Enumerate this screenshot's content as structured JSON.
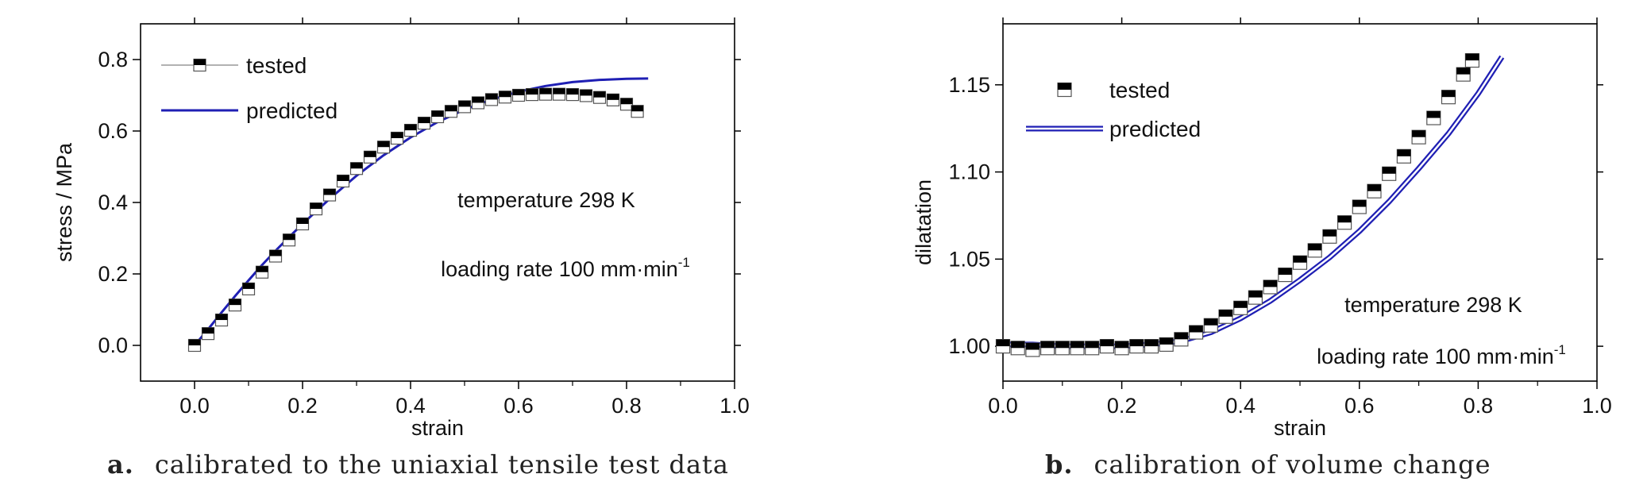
{
  "chart_data": [
    {
      "type": "line",
      "xlabel": "strain",
      "ylabel": "stress / MPa",
      "xlim": [
        -0.1,
        1.0
      ],
      "ylim": [
        -0.1,
        0.9
      ],
      "xticks": [
        "0.0",
        "0.2",
        "0.4",
        "0.6",
        "0.8",
        "1.0"
      ],
      "yticks": [
        "0.0",
        "0.2",
        "0.4",
        "0.6",
        "0.8"
      ],
      "legend": {
        "placement": "top-left",
        "entries": [
          "tested",
          "predicted"
        ]
      },
      "annotations": [
        "temperature 298 K",
        "loading rate 100 mm·min",
        "-1"
      ],
      "series": [
        {
          "name": "tested",
          "marker": "half-filled-square",
          "x": [
            0.0,
            0.025,
            0.05,
            0.075,
            0.1,
            0.125,
            0.15,
            0.175,
            0.2,
            0.225,
            0.25,
            0.275,
            0.3,
            0.325,
            0.35,
            0.375,
            0.4,
            0.425,
            0.45,
            0.475,
            0.5,
            0.525,
            0.55,
            0.575,
            0.6,
            0.625,
            0.65,
            0.675,
            0.7,
            0.725,
            0.75,
            0.775,
            0.8,
            0.82
          ],
          "y": [
            0.0,
            0.033,
            0.071,
            0.113,
            0.158,
            0.205,
            0.25,
            0.295,
            0.34,
            0.382,
            0.421,
            0.46,
            0.495,
            0.527,
            0.555,
            0.58,
            0.602,
            0.622,
            0.64,
            0.655,
            0.668,
            0.679,
            0.688,
            0.695,
            0.7,
            0.702,
            0.703,
            0.703,
            0.702,
            0.699,
            0.694,
            0.687,
            0.675,
            0.655
          ]
        },
        {
          "name": "predicted",
          "x": [
            0.0,
            0.025,
            0.05,
            0.075,
            0.1,
            0.125,
            0.15,
            0.175,
            0.2,
            0.25,
            0.3,
            0.35,
            0.4,
            0.45,
            0.5,
            0.55,
            0.6,
            0.65,
            0.7,
            0.75,
            0.8,
            0.84
          ],
          "y": [
            0.0,
            0.045,
            0.092,
            0.138,
            0.182,
            0.225,
            0.265,
            0.303,
            0.34,
            0.41,
            0.475,
            0.532,
            0.582,
            0.625,
            0.66,
            0.688,
            0.71,
            0.726,
            0.737,
            0.743,
            0.746,
            0.747
          ]
        }
      ]
    },
    {
      "type": "line",
      "xlabel": "strain",
      "ylabel": "dilatation",
      "xlim": [
        0.0,
        1.0
      ],
      "ylim": [
        0.98,
        1.185
      ],
      "xticks": [
        "0.0",
        "0.2",
        "0.4",
        "0.6",
        "0.8",
        "1.0"
      ],
      "yticks": [
        "1.00",
        "1.05",
        "1.10",
        "1.15"
      ],
      "legend": {
        "placement": "top-left",
        "entries": [
          "tested",
          "predicted"
        ]
      },
      "annotations": [
        "temperature 298 K",
        "loading rate 100 mm·min",
        "-1"
      ],
      "series": [
        {
          "name": "tested",
          "marker": "half-filled-square",
          "x": [
            0.0,
            0.025,
            0.05,
            0.075,
            0.1,
            0.125,
            0.15,
            0.175,
            0.2,
            0.225,
            0.25,
            0.275,
            0.3,
            0.325,
            0.35,
            0.375,
            0.4,
            0.425,
            0.45,
            0.475,
            0.5,
            0.525,
            0.55,
            0.575,
            0.6,
            0.625,
            0.65,
            0.675,
            0.7,
            0.725,
            0.75,
            0.775,
            0.79
          ],
          "y": [
            1.0,
            0.999,
            0.998,
            0.999,
            0.999,
            0.999,
            0.999,
            1.0,
            0.999,
            1.0,
            1.0,
            1.001,
            1.004,
            1.008,
            1.012,
            1.017,
            1.022,
            1.028,
            1.034,
            1.041,
            1.048,
            1.055,
            1.063,
            1.071,
            1.08,
            1.089,
            1.099,
            1.109,
            1.12,
            1.131,
            1.143,
            1.156,
            1.164
          ]
        },
        {
          "name": "predicted",
          "x": [
            0.0,
            0.05,
            0.1,
            0.15,
            0.2,
            0.25,
            0.3,
            0.35,
            0.4,
            0.45,
            0.5,
            0.55,
            0.6,
            0.65,
            0.7,
            0.75,
            0.8,
            0.84
          ],
          "y": [
            1.001,
            1.001,
            1.0,
            1.0,
            1.0,
            1.001,
            1.003,
            1.008,
            1.016,
            1.026,
            1.038,
            1.051,
            1.066,
            1.083,
            1.102,
            1.122,
            1.145,
            1.166
          ]
        }
      ]
    }
  ],
  "captions": [
    {
      "label": "a.",
      "text": "calibrated to the uniaxial tensile test data"
    },
    {
      "label": "b.",
      "text": "calibration of volume change"
    }
  ],
  "colors": {
    "predicted": "#1f1fb4",
    "axis": "#000000",
    "marker": "#000000"
  }
}
